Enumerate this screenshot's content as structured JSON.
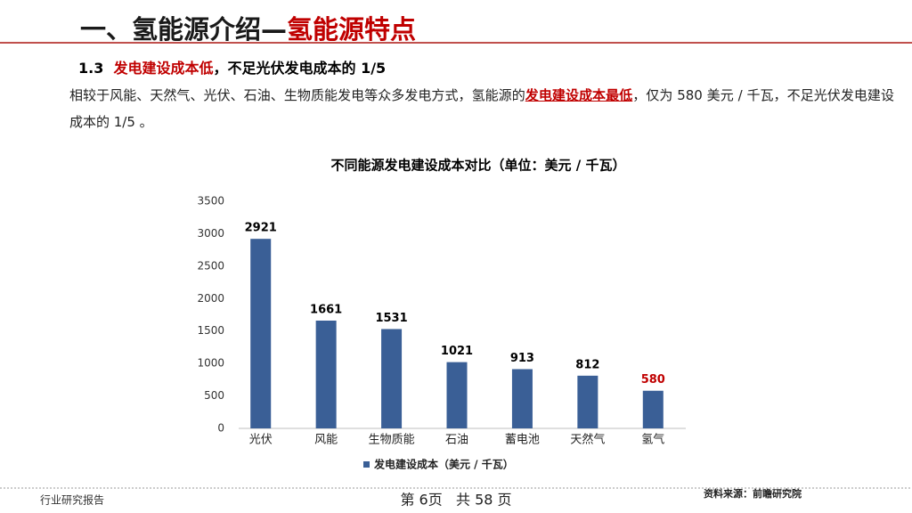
{
  "header": {
    "title_prefix": "一、氢能源介绍—",
    "title_highlight": "氢能源特点"
  },
  "subtitle": {
    "number": "1.3",
    "highlight": "发电建设成本低",
    "rest": "，不足光伏发电成本的 1/5"
  },
  "paragraph": {
    "before": "相较于风能、天然气、光伏、石油、生物质能发电等众多发电方式，氢能源的",
    "highlight": "发电建设成本最低",
    "after": "，仅为 580 美元 / 千瓦，不足光伏发电建设成本的 1/5 。"
  },
  "chart_data": {
    "type": "bar",
    "title": "不同能源发电建设成本对比（单位：美元 / 千瓦）",
    "categories": [
      "光伏",
      "风能",
      "生物质能",
      "石油",
      "蓄电池",
      "天然气",
      "氢气"
    ],
    "series": [
      {
        "name": "发电建设成本（美元 / 千瓦）",
        "color": "#3a5f96",
        "values": [
          2921,
          1661,
          1531,
          1021,
          913,
          812,
          580
        ]
      }
    ],
    "label_colors": [
      "#000000",
      "#000000",
      "#000000",
      "#000000",
      "#000000",
      "#000000",
      "#c00000"
    ],
    "ylim": [
      0,
      3500
    ],
    "yticks": [
      0,
      500,
      1000,
      1500,
      2000,
      2500,
      3000,
      3500
    ],
    "legend": "bottom"
  },
  "footer": {
    "left": "行业研究报告",
    "page": "第 6页   共 58 页",
    "source": "资料来源：前瞻研究院"
  }
}
